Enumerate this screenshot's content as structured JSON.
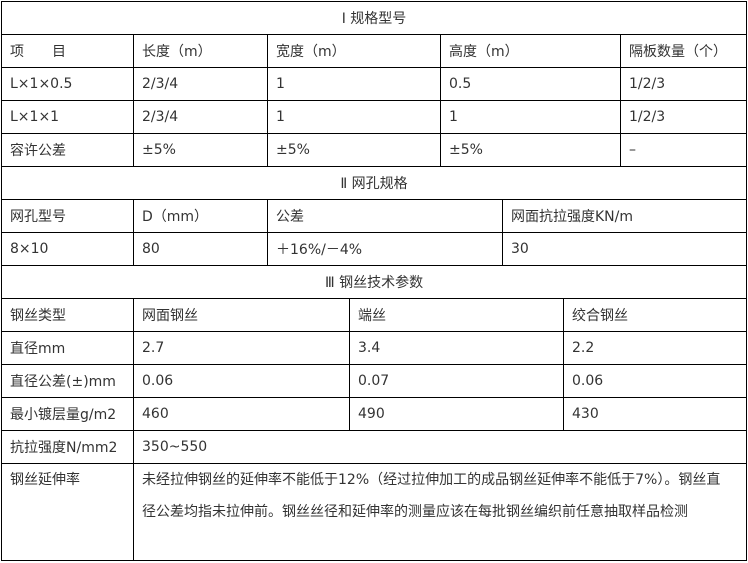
{
  "section1": {
    "title": "Ⅰ 规格型号",
    "headers": [
      "项　　目",
      "长度（m）",
      "宽度（m）",
      "高度（m）",
      "隔板数量（个）"
    ],
    "rows": [
      [
        "L×1×0.5",
        "2/3/4",
        "1",
        "0.5",
        "1/2/3"
      ],
      [
        "L×1×1",
        "2/3/4",
        "1",
        "1",
        "1/2/3"
      ],
      [
        "容许公差",
        "±5%",
        "±5%",
        "±5%",
        "–"
      ]
    ]
  },
  "section2": {
    "title": "Ⅱ 网孔规格",
    "headers": [
      "网孔型号",
      "D（mm）",
      "公差",
      "网面抗拉强度KN/m"
    ],
    "rows": [
      [
        "8×10",
        "80",
        "＋16%/－4%",
        "30"
      ]
    ]
  },
  "section3": {
    "title": "Ⅲ 钢丝技术参数",
    "headers": [
      "钢丝类型",
      "网面钢丝",
      "端丝",
      "绞合钢丝"
    ],
    "rows": [
      [
        "直径mm",
        "2.7",
        "3.4",
        "2.2"
      ],
      [
        "直径公差(±)mm",
        "0.06",
        "0.07",
        "0.06"
      ],
      [
        "最小镀层量g/m2",
        "460",
        "490",
        "430"
      ]
    ],
    "tensile": {
      "label": "抗拉强度N/mm2",
      "value": "350~550"
    },
    "elongation": {
      "label": "钢丝延伸率",
      "value": "未经拉伸钢丝的延伸率不能低于12%（经过拉伸加工的成品钢丝延伸率不能低于7%）。钢丝直径公差均指未拉伸前。钢丝丝径和延伸率的测量应该在每批钢丝编织前任意抽取样品检测"
    }
  }
}
